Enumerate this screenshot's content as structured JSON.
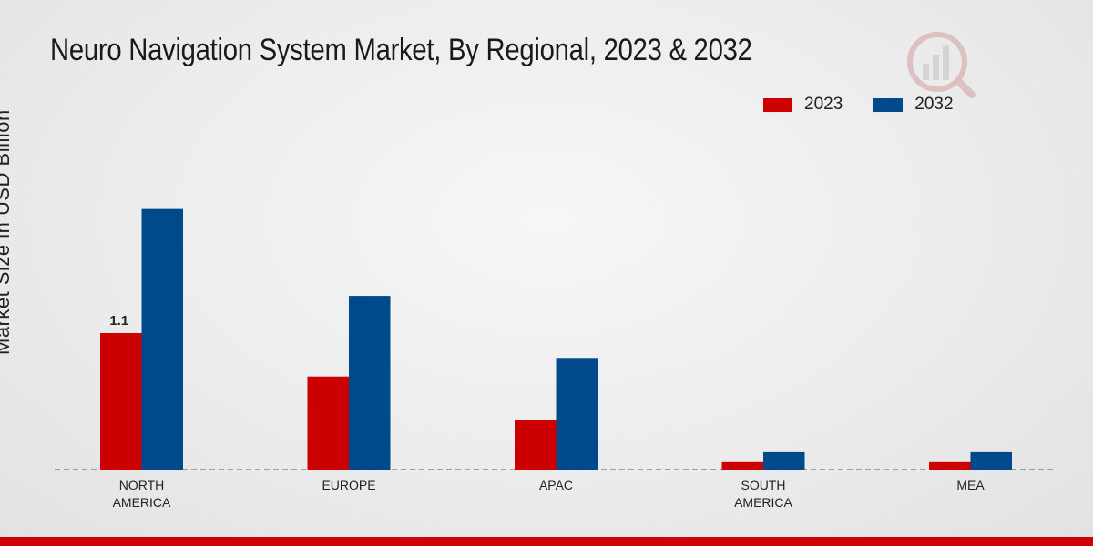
{
  "chart_data": {
    "type": "bar",
    "title": "Neuro Navigation System Market, By Regional, 2023 & 2032",
    "xlabel": "",
    "ylabel": "Market Size in USD Billion",
    "categories": [
      "NORTH AMERICA",
      "EUROPE",
      "APAC",
      "SOUTH AMERICA",
      "MEA"
    ],
    "category_lines": [
      [
        "NORTH",
        "AMERICA"
      ],
      [
        "EUROPE"
      ],
      [
        "APAC"
      ],
      [
        "SOUTH",
        "AMERICA"
      ],
      [
        "MEA"
      ]
    ],
    "series": [
      {
        "name": "2023",
        "color": "#cc0000",
        "values": [
          1.1,
          0.75,
          0.4,
          0.06,
          0.06
        ]
      },
      {
        "name": "2032",
        "color": "#004a8c",
        "values": [
          2.1,
          1.4,
          0.9,
          0.14,
          0.14
        ]
      }
    ],
    "data_labels": [
      {
        "series": "2023",
        "category": "NORTH AMERICA",
        "text": "1.1"
      }
    ],
    "ylim": [
      0,
      2.2
    ],
    "grid": false,
    "legend_position": "top-right"
  }
}
